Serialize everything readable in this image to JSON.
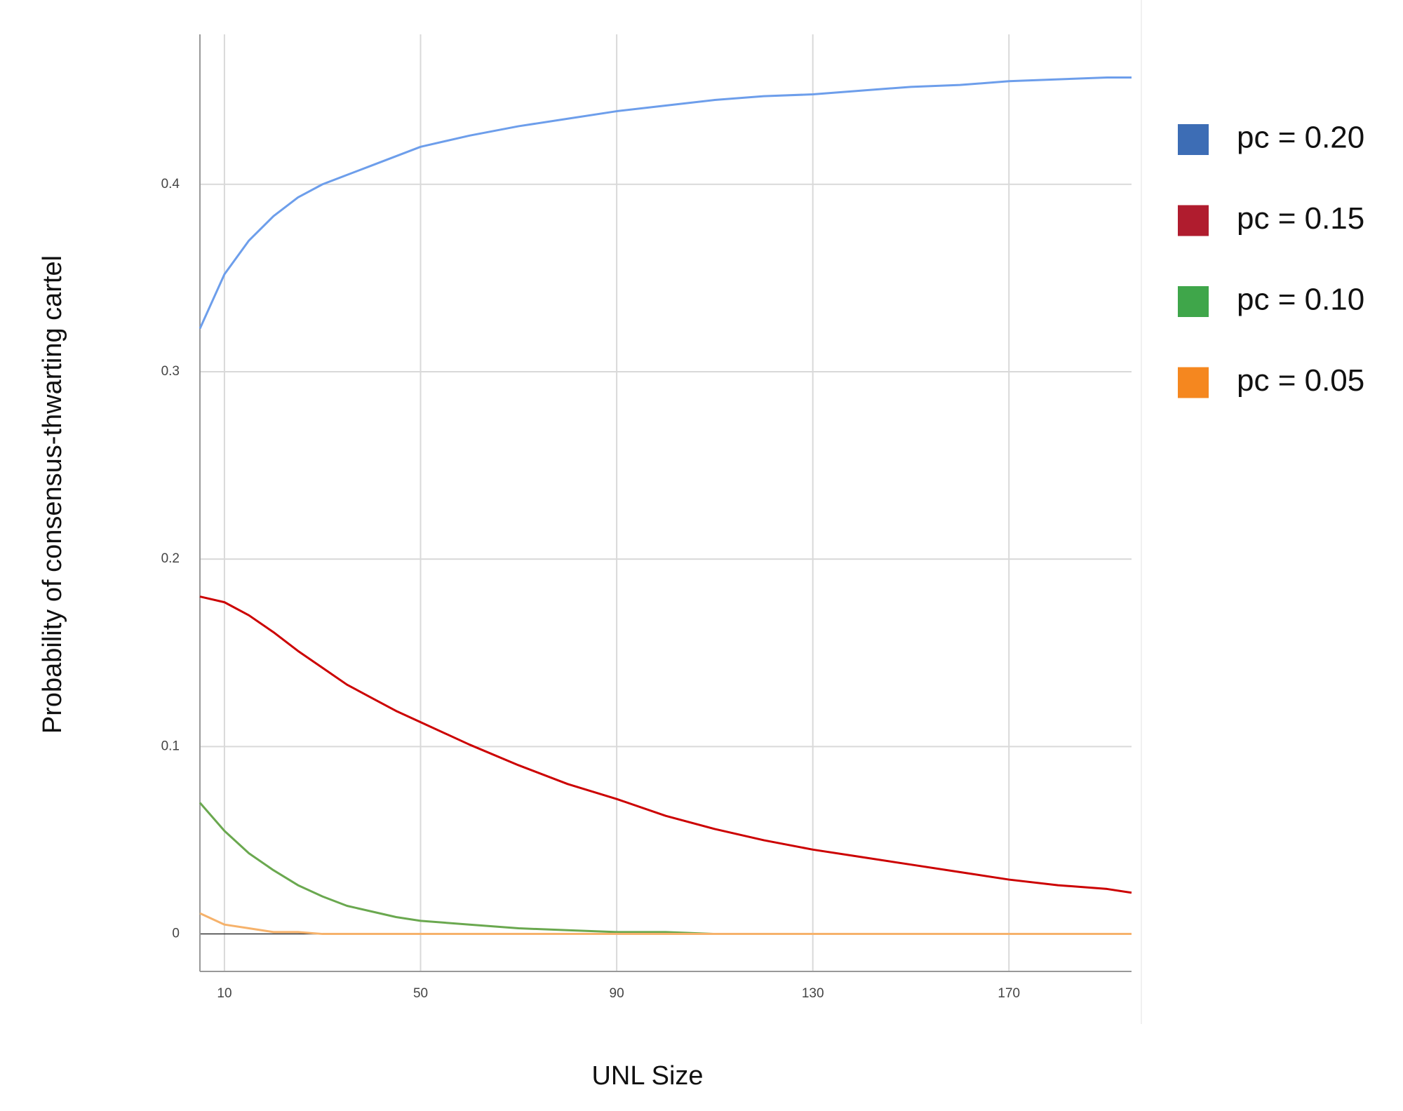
{
  "chart_data": {
    "type": "line",
    "xlabel": "UNL Size",
    "ylabel": "Probability of consensus-thwarting cartel",
    "x": [
      5,
      10,
      15,
      20,
      25,
      30,
      35,
      40,
      45,
      50,
      60,
      70,
      80,
      90,
      100,
      110,
      120,
      130,
      140,
      150,
      160,
      170,
      180,
      190,
      195
    ],
    "series": [
      {
        "name": "pc = 0.20",
        "color": "#6d9eeb",
        "legend_color": "#3d6db5",
        "values": [
          0.323,
          0.352,
          0.37,
          0.383,
          0.393,
          0.4,
          0.405,
          0.41,
          0.415,
          0.42,
          0.426,
          0.431,
          0.435,
          0.439,
          0.442,
          0.445,
          0.447,
          0.448,
          0.45,
          0.452,
          0.453,
          0.455,
          0.456,
          0.457,
          0.457
        ]
      },
      {
        "name": "pc = 0.15",
        "color": "#cc0000",
        "legend_color": "#b01c2e",
        "values": [
          0.18,
          0.177,
          0.17,
          0.161,
          0.151,
          0.142,
          0.133,
          0.126,
          0.119,
          0.113,
          0.101,
          0.09,
          0.08,
          0.072,
          0.063,
          0.056,
          0.05,
          0.045,
          0.041,
          0.037,
          0.033,
          0.029,
          0.026,
          0.024,
          0.022
        ]
      },
      {
        "name": "pc = 0.10",
        "color": "#6aa84f",
        "legend_color": "#3fa64a",
        "values": [
          0.07,
          0.055,
          0.043,
          0.034,
          0.026,
          0.02,
          0.015,
          0.012,
          0.009,
          0.007,
          0.005,
          0.003,
          0.002,
          0.001,
          0.001,
          0,
          0,
          0,
          0,
          0,
          0,
          0,
          0,
          0,
          0
        ]
      },
      {
        "name": "pc = 0.05",
        "color": "#f6b26b",
        "legend_color": "#f5871f",
        "values": [
          0.011,
          0.005,
          0.003,
          0.001,
          0.001,
          0,
          0,
          0,
          0,
          0,
          0,
          0,
          0,
          0,
          0,
          0,
          0,
          0,
          0,
          0,
          0,
          0,
          0,
          0,
          0
        ]
      }
    ],
    "xlim": [
      5,
      195
    ],
    "xticks": [
      10,
      50,
      90,
      130,
      170
    ],
    "ylim": [
      -0.02,
      0.48
    ],
    "yticks": [
      0,
      0.1,
      0.2,
      0.3,
      0.4
    ],
    "grid": true,
    "legend": "right"
  }
}
